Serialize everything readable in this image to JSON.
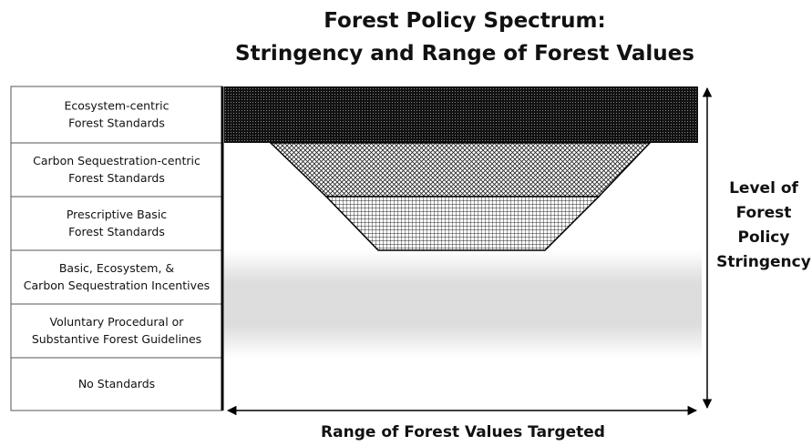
{
  "title": [
    "Forest Policy Spectrum:",
    "Stringency and Range of Forest Values"
  ],
  "rows": [
    [
      "Ecosystem-centric",
      "Forest Standards"
    ],
    [
      "Carbon Sequestration-centric",
      "Forest Standards"
    ],
    [
      "Prescriptive Basic",
      "Forest Standards"
    ],
    [
      "Basic, Ecosystem, &",
      "Carbon Sequestration Incentives"
    ],
    [
      "Voluntary Procedural or",
      "Substantive Forest Guidelines"
    ],
    [
      "No Standards"
    ]
  ],
  "y_axis_label": [
    "Level of",
    "Forest",
    "Policy",
    "Stringency"
  ],
  "x_axis_label": "Range of Forest Values Targeted"
}
